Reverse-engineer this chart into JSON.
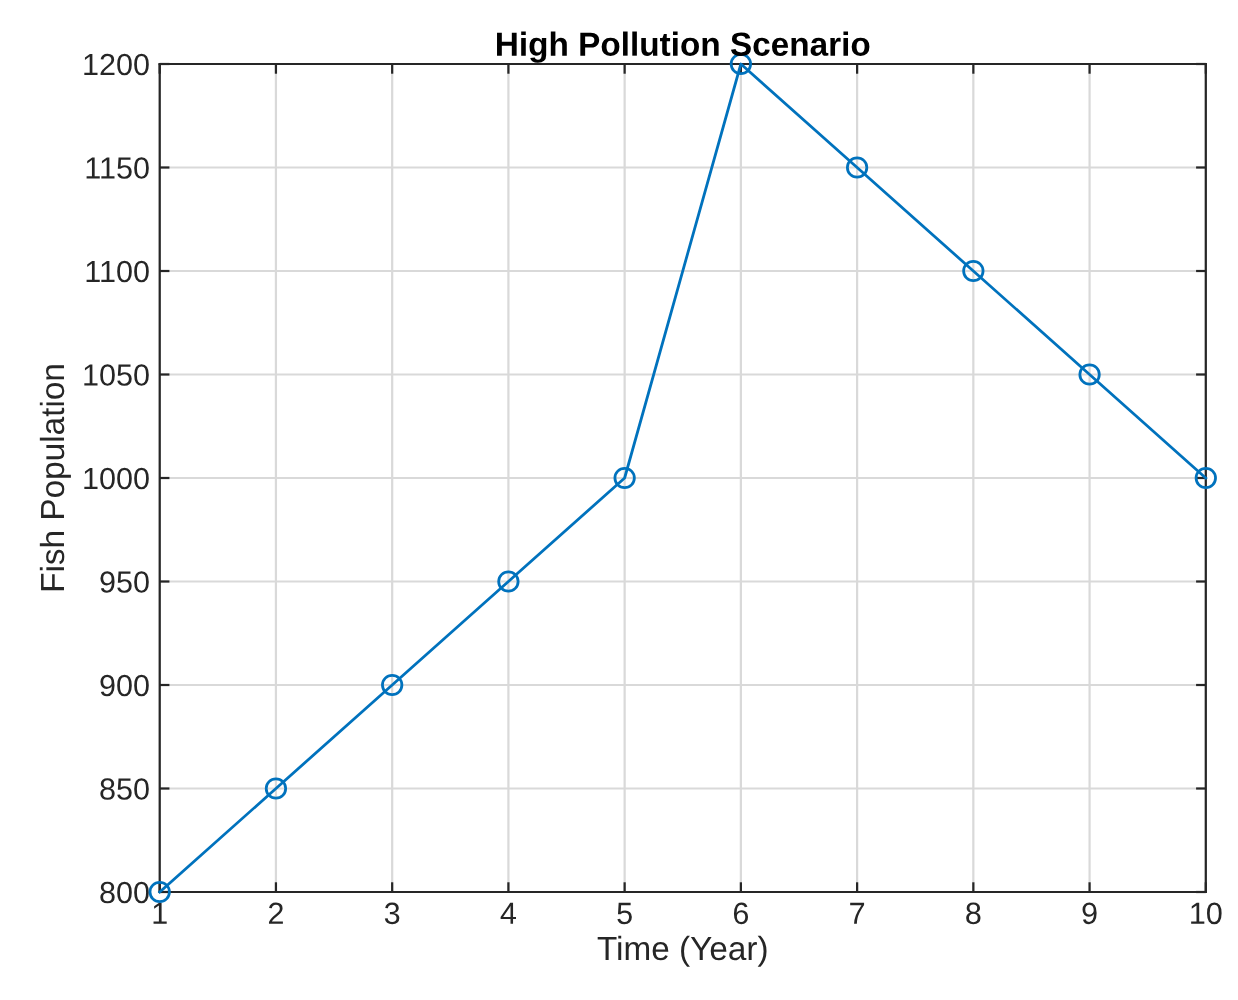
{
  "chart_data": {
    "type": "line",
    "title": "High Pollution Scenario",
    "xlabel": "Time (Year)",
    "ylabel": "Fish Population",
    "x": [
      1,
      2,
      3,
      4,
      5,
      6,
      7,
      8,
      9,
      10
    ],
    "series": [
      {
        "color": "#0072bd",
        "values": [
          800,
          850,
          900,
          950,
          1000,
          1200,
          1150,
          1100,
          1050,
          1000
        ]
      }
    ],
    "xlim": [
      1,
      10
    ],
    "xticks": [
      1,
      2,
      3,
      4,
      5,
      6,
      7,
      8,
      9,
      10
    ],
    "ylim": [
      800,
      1200
    ],
    "yticks": [
      800,
      850,
      900,
      950,
      1000,
      1050,
      1100,
      1150,
      1200
    ],
    "grid": true,
    "marker": "circle",
    "line_style": "solid"
  }
}
